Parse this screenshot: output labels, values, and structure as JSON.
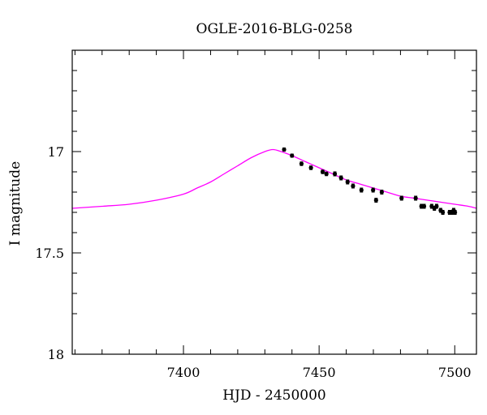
{
  "chart_data": {
    "type": "scatter",
    "title": "OGLE-2016-BLG-0258",
    "xlabel": "HJD - 2450000",
    "ylabel": "I magnitude",
    "xlim": [
      7359,
      7508
    ],
    "ylim": [
      16.5,
      18.0
    ],
    "y_inverted": true,
    "grid": false,
    "x_ticks": [
      7400,
      7450,
      7500
    ],
    "y_ticks": [
      17,
      17.5,
      18
    ],
    "colors": {
      "model": "#ff00ff",
      "points": "#000000",
      "axes": "#000000"
    },
    "observations": [
      {
        "x": 7437.1,
        "y": 16.99,
        "err": 0.008
      },
      {
        "x": 7440.0,
        "y": 17.02,
        "err": 0.008
      },
      {
        "x": 7443.5,
        "y": 17.06,
        "err": 0.009
      },
      {
        "x": 7447.0,
        "y": 17.08,
        "err": 0.009
      },
      {
        "x": 7451.3,
        "y": 17.1,
        "err": 0.009
      },
      {
        "x": 7452.7,
        "y": 17.11,
        "err": 0.009
      },
      {
        "x": 7455.8,
        "y": 17.11,
        "err": 0.01
      },
      {
        "x": 7458.1,
        "y": 17.13,
        "err": 0.01
      },
      {
        "x": 7460.5,
        "y": 17.15,
        "err": 0.01
      },
      {
        "x": 7462.5,
        "y": 17.17,
        "err": 0.01
      },
      {
        "x": 7465.6,
        "y": 17.19,
        "err": 0.01
      },
      {
        "x": 7469.9,
        "y": 17.19,
        "err": 0.01
      },
      {
        "x": 7471.0,
        "y": 17.24,
        "err": 0.01
      },
      {
        "x": 7473.1,
        "y": 17.2,
        "err": 0.01
      },
      {
        "x": 7480.4,
        "y": 17.23,
        "err": 0.01
      },
      {
        "x": 7485.6,
        "y": 17.23,
        "err": 0.01
      },
      {
        "x": 7487.7,
        "y": 17.27,
        "err": 0.01
      },
      {
        "x": 7488.7,
        "y": 17.27,
        "err": 0.01
      },
      {
        "x": 7491.5,
        "y": 17.27,
        "err": 0.01
      },
      {
        "x": 7492.5,
        "y": 17.28,
        "err": 0.01
      },
      {
        "x": 7493.3,
        "y": 17.27,
        "err": 0.01
      },
      {
        "x": 7494.8,
        "y": 17.29,
        "err": 0.01
      },
      {
        "x": 7495.6,
        "y": 17.3,
        "err": 0.01
      },
      {
        "x": 7498.1,
        "y": 17.3,
        "err": 0.01
      },
      {
        "x": 7499.0,
        "y": 17.3,
        "err": 0.01
      },
      {
        "x": 7499.6,
        "y": 17.29,
        "err": 0.01
      },
      {
        "x": 7500.1,
        "y": 17.3,
        "err": 0.01
      }
    ],
    "model_curve": {
      "x": [
        7359,
        7370,
        7380,
        7390,
        7400,
        7405,
        7410,
        7415,
        7420,
        7425,
        7430,
        7433,
        7436,
        7440,
        7445,
        7450,
        7455,
        7460,
        7465,
        7470,
        7475,
        7480,
        7485,
        7490,
        7495,
        7500,
        7505,
        7508
      ],
      "y": [
        17.28,
        17.27,
        17.26,
        17.24,
        17.21,
        17.18,
        17.15,
        17.11,
        17.07,
        17.03,
        17.0,
        16.99,
        17.0,
        17.02,
        17.05,
        17.08,
        17.11,
        17.14,
        17.16,
        17.18,
        17.2,
        17.22,
        17.23,
        17.24,
        17.25,
        17.26,
        17.27,
        17.28
      ]
    }
  }
}
